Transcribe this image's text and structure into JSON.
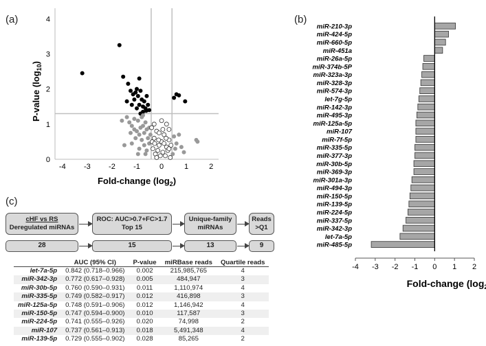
{
  "panel_labels": {
    "a": "(a)",
    "b": "(b)",
    "c": "(c)"
  },
  "colors": {
    "bar_fill": "#a6a6a6",
    "significant": "#000000",
    "nonsignificant": "#999999",
    "threshold": "#bfbfbf"
  },
  "chart_data": [
    {
      "type": "scatter",
      "panel": "(a)",
      "title": "",
      "xlabel": "Fold-change (log",
      "xlabel_sub": "2",
      "xlabel_close": ")",
      "ylabel": "P-value (log",
      "ylabel_sub": "10",
      "ylabel_close": ")",
      "xlim": [
        -4.3,
        2.3
      ],
      "ylim": [
        0,
        4.3
      ],
      "xticks": [
        -4,
        -3,
        -2,
        -1,
        0,
        1,
        2
      ],
      "yticks": [
        0,
        1,
        2,
        3,
        4
      ],
      "thresholds": {
        "y": 1.3,
        "x": [
          -0.42,
          0.42
        ]
      },
      "series": [
        {
          "name": "significant",
          "style": "filled-black",
          "points": [
            [
              -3.2,
              2.45
            ],
            [
              -1.7,
              3.25
            ],
            [
              -1.55,
              2.35
            ],
            [
              -1.35,
              2.15
            ],
            [
              -1.25,
              1.95
            ],
            [
              -1.15,
              1.85
            ],
            [
              -1.1,
              1.7
            ],
            [
              -1.05,
              1.9
            ],
            [
              -1.0,
              2.0
            ],
            [
              -0.95,
              1.8
            ],
            [
              -0.9,
              1.55
            ],
            [
              -0.85,
              1.95
            ],
            [
              -0.8,
              1.7
            ],
            [
              -0.75,
              1.5
            ],
            [
              -0.7,
              1.65
            ],
            [
              -0.65,
              1.45
            ],
            [
              -0.6,
              1.8
            ],
            [
              -0.55,
              1.55
            ],
            [
              -0.5,
              1.4
            ],
            [
              -1.2,
              1.55
            ],
            [
              -1.0,
              1.45
            ],
            [
              -0.9,
              2.3
            ],
            [
              -0.75,
              1.35
            ],
            [
              -1.4,
              1.65
            ],
            [
              -0.62,
              1.38
            ],
            [
              0.5,
              1.75
            ],
            [
              0.6,
              1.85
            ],
            [
              0.7,
              1.82
            ],
            [
              0.95,
              1.65
            ],
            [
              -0.85,
              1.3
            ]
          ]
        },
        {
          "name": "nonsignificant",
          "style": "filled-gray",
          "points": [
            [
              -1.4,
              1.2
            ],
            [
              -1.3,
              1.05
            ],
            [
              -1.2,
              0.95
            ],
            [
              -1.1,
              0.85
            ],
            [
              -1.0,
              0.8
            ],
            [
              -0.95,
              1.1
            ],
            [
              -0.9,
              0.7
            ],
            [
              -0.85,
              0.9
            ],
            [
              -0.8,
              1.2
            ],
            [
              -0.75,
              0.95
            ],
            [
              -0.7,
              0.75
            ],
            [
              -0.65,
              1.05
            ],
            [
              -0.6,
              0.85
            ],
            [
              -0.55,
              0.6
            ],
            [
              -0.5,
              0.9
            ],
            [
              -0.45,
              0.7
            ],
            [
              -1.6,
              1.1
            ],
            [
              -1.5,
              0.4
            ],
            [
              -0.9,
              0.3
            ],
            [
              -0.8,
              0.55
            ],
            [
              -1.05,
              0.6
            ],
            [
              -1.2,
              0.45
            ],
            [
              -0.7,
              0.4
            ],
            [
              -0.6,
              0.25
            ],
            [
              -0.5,
              0.45
            ],
            [
              -0.95,
              0.15
            ],
            [
              -0.65,
              0.15
            ],
            [
              0.5,
              0.65
            ],
            [
              0.6,
              0.45
            ],
            [
              0.7,
              0.7
            ],
            [
              0.8,
              0.35
            ],
            [
              0.9,
              0.2
            ],
            [
              1.4,
              0.55
            ],
            [
              1.45,
              0.5
            ],
            [
              0.55,
              0.3
            ],
            [
              0.45,
              0.15
            ],
            [
              -1.1,
              1.15
            ],
            [
              -0.75,
              1.25
            ],
            [
              -1.25,
              0.75
            ]
          ]
        },
        {
          "name": "below-threshold",
          "style": "open-circle",
          "points": [
            [
              -0.4,
              0.9
            ],
            [
              -0.3,
              0.6
            ],
            [
              -0.2,
              0.8
            ],
            [
              -0.1,
              0.4
            ],
            [
              0.0,
              0.5
            ],
            [
              0.1,
              0.7
            ],
            [
              0.2,
              0.35
            ],
            [
              0.3,
              0.55
            ],
            [
              -0.35,
              0.3
            ],
            [
              -0.25,
              0.15
            ],
            [
              -0.15,
              0.25
            ],
            [
              -0.05,
              0.1
            ],
            [
              0.05,
              0.2
            ],
            [
              0.15,
              0.1
            ],
            [
              0.25,
              0.25
            ],
            [
              0.35,
              0.05
            ],
            [
              -0.3,
              1.0
            ],
            [
              0.0,
              1.1
            ],
            [
              0.2,
              1.0
            ],
            [
              0.3,
              0.85
            ],
            [
              -0.1,
              0.75
            ],
            [
              0.1,
              0.45
            ],
            [
              -0.2,
              0.05
            ],
            [
              0.3,
              0.3
            ],
            [
              -0.38,
              0.5
            ],
            [
              0.38,
              0.4
            ],
            [
              0.05,
              0.85
            ],
            [
              -0.12,
              0.55
            ],
            [
              0.18,
              0.6
            ],
            [
              -0.28,
              0.45
            ]
          ]
        }
      ]
    },
    {
      "type": "bar",
      "panel": "(b)",
      "orientation": "horizontal",
      "title": "",
      "xlabel": "Fold-change (log",
      "xlabel_sub": "2",
      "xlabel_close": ")",
      "xlim": [
        -4,
        2
      ],
      "xticks": [
        -4,
        -3,
        -2,
        -1,
        0,
        1,
        2
      ],
      "categories": [
        "miR-210-3p",
        "miR-424-5p",
        "miR-660-5p",
        "miR-451a",
        "miR-26a-5p",
        "miR-374b-5P",
        "miR-323a-3p",
        "miR-328-3p",
        "miR-574-3p",
        "let-7g-5p",
        "miR-142-3p",
        "miR-495-3p",
        "miR-125a-5p",
        "miR-107",
        "miR-7f-5p",
        "miR-335-5p",
        "miR-377-3p",
        "miR-30b-5p",
        "miR-369-3p",
        "miR-301a-3p",
        "miR-494-3p",
        "miR-150-5p",
        "miR-139-5p",
        "miR-224-5p",
        "miR-337-5p",
        "miR-342-3p",
        "let-7a-5p",
        "miR-485-5p"
      ],
      "values": [
        1.05,
        0.7,
        0.55,
        0.4,
        -0.55,
        -0.6,
        -0.65,
        -0.7,
        -0.75,
        -0.8,
        -0.85,
        -0.9,
        -0.95,
        -0.95,
        -0.95,
        -1.0,
        -1.0,
        -1.05,
        -1.05,
        -1.15,
        -1.2,
        -1.25,
        -1.3,
        -1.35,
        -1.45,
        -1.6,
        -1.75,
        -3.2
      ]
    },
    {
      "type": "table",
      "panel": "(c)",
      "flow": [
        {
          "title": "cHF vs RS",
          "subtitle": "Deregulated miRNAs",
          "count": "28"
        },
        {
          "title": "ROC: AUC>0.7+FC>1.7",
          "subtitle": "Top 15",
          "count": "15"
        },
        {
          "title": "Unique-family",
          "subtitle": "miRNAs",
          "count": "13"
        },
        {
          "title": "Reads >Q1",
          "subtitle": "",
          "count": "9"
        }
      ],
      "columns": [
        "",
        "AUC (95% CI)",
        "P-value",
        "miRBase reads",
        "Quartile reads"
      ],
      "rows": [
        {
          "mirna": "let-7a-5p",
          "auc": "0.842 (0.718–0.966)",
          "p": "0.002",
          "reads": "215,985,765",
          "quartile": "4"
        },
        {
          "mirna": "miR-342-3p",
          "auc": "0.772 (0.617–0.928)",
          "p": "0.005",
          "reads": "484,947",
          "quartile": "3"
        },
        {
          "mirna": "miR-30b-5p",
          "auc": "0.760 (0.590–0.931)",
          "p": "0.011",
          "reads": "1,110,974",
          "quartile": "4"
        },
        {
          "mirna": "miR-335-5p",
          "auc": "0.749 (0.582–0.917)",
          "p": "0.012",
          "reads": "416,898",
          "quartile": "3"
        },
        {
          "mirna": "miR-125a-5p",
          "auc": "0.748 (0.591–0.906)",
          "p": "0.012",
          "reads": "1,146,942",
          "quartile": "4"
        },
        {
          "mirna": "miR-150-5p",
          "auc": "0.747 (0.594–0.900)",
          "p": "0.010",
          "reads": "117,587",
          "quartile": "3"
        },
        {
          "mirna": "miR-224-5p",
          "auc": "0.741 (0.555–0.926)",
          "p": "0.020",
          "reads": "74,998",
          "quartile": "2"
        },
        {
          "mirna": "miR-107",
          "auc": "0.737 (0.561–0.913)",
          "p": "0.018",
          "reads": "5,491,348",
          "quartile": "4"
        },
        {
          "mirna": "miR-139-5p",
          "auc": "0.729 (0.555–0.902)",
          "p": "0.028",
          "reads": "85,265",
          "quartile": "2"
        }
      ]
    }
  ]
}
